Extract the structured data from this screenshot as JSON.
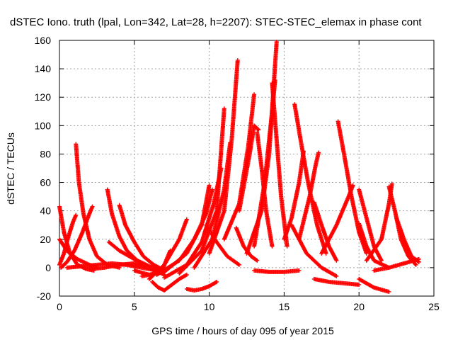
{
  "chart_data": {
    "type": "scatter",
    "title": "dSTEC Iono. truth (lpal, Lon=342, Lat=28, h=2207): STEC-STEC_elemax in phase cont",
    "xlabel": "GPS time / hours of day 095 of year 2015",
    "ylabel": "dSTEC  / TECUs",
    "xlim": [
      0,
      25
    ],
    "ylim": [
      -20,
      160
    ],
    "x_ticks": [
      0,
      5,
      10,
      15,
      20,
      25
    ],
    "y_ticks": [
      -20,
      0,
      20,
      40,
      60,
      80,
      100,
      120,
      140,
      160
    ],
    "grid": true,
    "marker": "+",
    "color": "#ff0000",
    "series": [
      {
        "x": [
          0.0,
          0.3,
          0.7,
          1.2,
          1.8,
          2.3
        ],
        "y": [
          43,
          25,
          10,
          2,
          -1,
          -2
        ]
      },
      {
        "x": [
          0.0,
          0.5,
          1.2,
          2.0,
          2.5
        ],
        "y": [
          20,
          12,
          6,
          2,
          0
        ]
      },
      {
        "x": [
          0.0,
          0.3,
          0.6,
          0.9,
          1.1
        ],
        "y": [
          2,
          10,
          22,
          32,
          37
        ]
      },
      {
        "x": [
          0.1,
          0.5,
          1.0,
          1.5,
          2.0,
          2.2
        ],
        "y": [
          0,
          4,
          12,
          24,
          38,
          43
        ]
      },
      {
        "x": [
          1.1,
          1.3,
          1.6,
          2.0,
          2.5,
          3.2,
          4.0
        ],
        "y": [
          87,
          60,
          38,
          20,
          8,
          2,
          0
        ]
      },
      {
        "x": [
          0.5,
          1.5,
          2.5,
          3.5,
          4.5,
          5.5,
          6.5
        ],
        "y": [
          0,
          1,
          2,
          3,
          2,
          0,
          -2
        ]
      },
      {
        "x": [
          3.2,
          3.5,
          4.0,
          4.5,
          5.2,
          6.0,
          7.0
        ],
        "y": [
          55,
          38,
          22,
          12,
          5,
          0,
          -3
        ]
      },
      {
        "x": [
          4.0,
          4.4,
          5.0,
          5.6,
          6.3,
          7.0
        ],
        "y": [
          44,
          30,
          18,
          8,
          2,
          -2
        ]
      },
      {
        "x": [
          3.3,
          4.0,
          5.0,
          6.0,
          6.8
        ],
        "y": [
          18,
          12,
          6,
          1,
          -2
        ]
      },
      {
        "x": [
          2.0,
          3.0,
          4.0,
          5.0,
          6.0,
          7.0
        ],
        "y": [
          -1,
          0,
          2,
          3,
          0,
          -5
        ]
      },
      {
        "x": [
          6.2,
          6.6,
          7.0,
          7.5,
          8.0,
          8.5
        ],
        "y": [
          -10,
          -14,
          -16,
          -12,
          -8,
          -5
        ]
      },
      {
        "x": [
          5.0,
          6.0,
          6.8,
          7.4
        ],
        "y": [
          -2,
          -5,
          -3,
          12
        ]
      },
      {
        "x": [
          6.0,
          7.0,
          8.0,
          8.5
        ],
        "y": [
          -8,
          2,
          20,
          34
        ]
      },
      {
        "x": [
          8.5,
          9.0,
          9.5,
          10.0,
          10.5
        ],
        "y": [
          -15,
          -16,
          -15,
          -13,
          -10
        ]
      },
      {
        "x": [
          5.5,
          7.0,
          8.5,
          9.5,
          10.0
        ],
        "y": [
          -6,
          -3,
          10,
          30,
          58
        ]
      },
      {
        "x": [
          6.5,
          8.0,
          9.0,
          9.8,
          10.2
        ],
        "y": [
          -5,
          5,
          20,
          38,
          55
        ]
      },
      {
        "x": [
          7.0,
          8.5,
          9.5,
          10.3,
          10.8
        ],
        "y": [
          -7,
          2,
          18,
          45,
          70
        ]
      },
      {
        "x": [
          8.0,
          9.5,
          10.5,
          11.0
        ],
        "y": [
          -4,
          12,
          40,
          112
        ]
      },
      {
        "x": [
          9.0,
          10.2,
          11.0,
          11.4
        ],
        "y": [
          0,
          20,
          55,
          88
        ]
      },
      {
        "x": [
          10.0,
          11.0,
          11.5,
          11.9
        ],
        "y": [
          10,
          40,
          90,
          146
        ]
      },
      {
        "x": [
          9.8,
          10.5,
          11.2,
          12.0
        ],
        "y": [
          30,
          18,
          8,
          2
        ]
      },
      {
        "x": [
          11.8,
          12.3,
          12.8,
          13.2
        ],
        "y": [
          28,
          15,
          8,
          5
        ]
      },
      {
        "x": [
          11.0,
          12.0,
          12.6,
          13.0
        ],
        "y": [
          20,
          45,
          85,
          122
        ]
      },
      {
        "x": [
          12.0,
          12.7,
          13.0,
          13.3
        ],
        "y": [
          40,
          80,
          100,
          97
        ]
      },
      {
        "x": [
          13.2,
          13.5,
          13.8,
          14.2
        ],
        "y": [
          95,
          70,
          40,
          15
        ]
      },
      {
        "x": [
          12.5,
          13.5,
          14.0,
          14.5
        ],
        "y": [
          10,
          40,
          80,
          159
        ]
      },
      {
        "x": [
          13.0,
          13.7,
          14.2,
          14.4
        ],
        "y": [
          15,
          60,
          110,
          132
        ]
      },
      {
        "x": [
          14.2,
          14.5,
          14.8,
          15.2
        ],
        "y": [
          130,
          90,
          50,
          15
        ]
      },
      {
        "x": [
          13.0,
          14.0,
          15.0,
          16.0
        ],
        "y": [
          -2,
          -3,
          -3,
          -2
        ]
      },
      {
        "x": [
          15.0,
          15.5,
          16.0,
          16.3
        ],
        "y": [
          20,
          35,
          60,
          82
        ]
      },
      {
        "x": [
          15.7,
          16.1,
          16.6,
          17.2,
          17.8
        ],
        "y": [
          115,
          90,
          60,
          30,
          10
        ]
      },
      {
        "x": [
          16.0,
          16.7,
          17.1,
          17.3
        ],
        "y": [
          20,
          50,
          72,
          81
        ]
      },
      {
        "x": [
          15.5,
          16.5,
          17.5,
          18.5
        ],
        "y": [
          30,
          10,
          0,
          -6
        ]
      },
      {
        "x": [
          17.0,
          17.5,
          18.0,
          18.5
        ],
        "y": [
          46,
          30,
          15,
          5
        ]
      },
      {
        "x": [
          18.6,
          19.0,
          19.5,
          20.0,
          20.5
        ],
        "y": [
          103,
          80,
          50,
          25,
          10
        ]
      },
      {
        "x": [
          17.5,
          18.5,
          19.3,
          19.6
        ],
        "y": [
          10,
          30,
          50,
          58
        ]
      },
      {
        "x": [
          17.0,
          18.0,
          19.0,
          20.0
        ],
        "y": [
          -8,
          -10,
          -11,
          -12
        ]
      },
      {
        "x": [
          20.0,
          20.5,
          21.0,
          21.5
        ],
        "y": [
          55,
          35,
          15,
          5
        ]
      },
      {
        "x": [
          20.0,
          20.5,
          21.0,
          22.0
        ],
        "y": [
          31,
          15,
          5,
          0
        ]
      },
      {
        "x": [
          20.0,
          21.0,
          22.0
        ],
        "y": [
          -8,
          -14,
          -17
        ]
      },
      {
        "x": [
          20.5,
          21.5,
          22.0,
          22.2
        ],
        "y": [
          5,
          20,
          45,
          59
        ]
      },
      {
        "x": [
          22.0,
          22.4,
          22.8,
          23.3,
          23.8
        ],
        "y": [
          57,
          40,
          20,
          8,
          2
        ]
      },
      {
        "x": [
          22.5,
          23.0,
          23.5,
          24.0
        ],
        "y": [
          35,
          20,
          8,
          4
        ]
      },
      {
        "x": [
          21.0,
          22.0,
          23.0,
          24.0
        ],
        "y": [
          -2,
          0,
          3,
          6
        ]
      }
    ]
  }
}
